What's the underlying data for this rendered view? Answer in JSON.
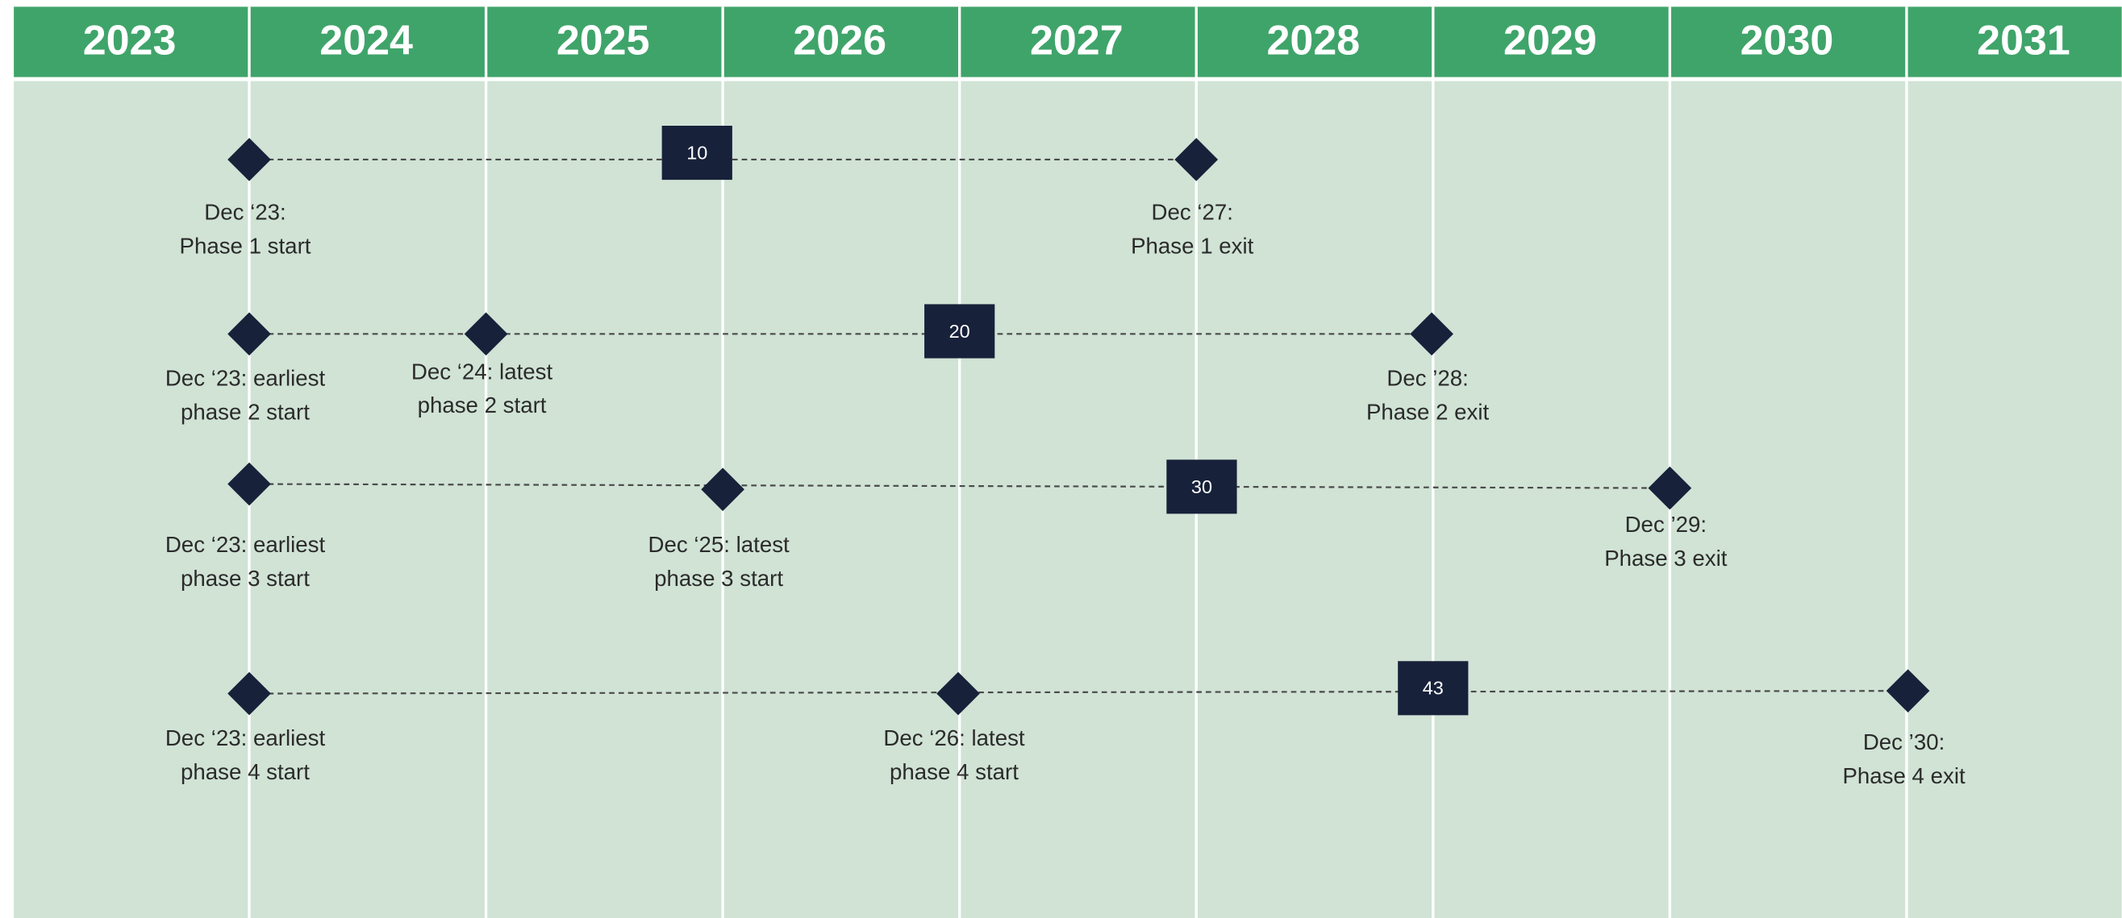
{
  "header": {
    "years": [
      2023,
      2024,
      2025,
      2026,
      2027,
      2028,
      2029,
      2030,
      2031
    ]
  },
  "rows": [
    {
      "duration": 10,
      "milestones": [
        {
          "lines": [
            "Dec ‘23:",
            "Phase 1 start"
          ]
        },
        {
          "lines": [
            "Dec ‘27:",
            "Phase 1 exit"
          ]
        }
      ]
    },
    {
      "duration": 20,
      "milestones": [
        {
          "lines": [
            "Dec ‘23: earliest",
            "phase 2 start"
          ]
        },
        {
          "lines": [
            "Dec ‘24: latest",
            "phase 2 start"
          ]
        },
        {
          "lines": [
            "Dec ’28:",
            "Phase 2 exit"
          ]
        }
      ]
    },
    {
      "duration": 30,
      "milestones": [
        {
          "lines": [
            "Dec ‘23: earliest",
            "phase 3 start"
          ]
        },
        {
          "lines": [
            "Dec ‘25: latest",
            "phase 3 start"
          ]
        },
        {
          "lines": [
            "Dec ’29:",
            "Phase 3 exit"
          ]
        }
      ]
    },
    {
      "duration": 43,
      "milestones": [
        {
          "lines": [
            "Dec ‘23: earliest",
            "phase 4 start"
          ]
        },
        {
          "lines": [
            "Dec ‘26: latest",
            "phase 4 start"
          ]
        },
        {
          "lines": [
            "Dec ’30:",
            "Phase 4 exit"
          ]
        }
      ]
    }
  ]
}
